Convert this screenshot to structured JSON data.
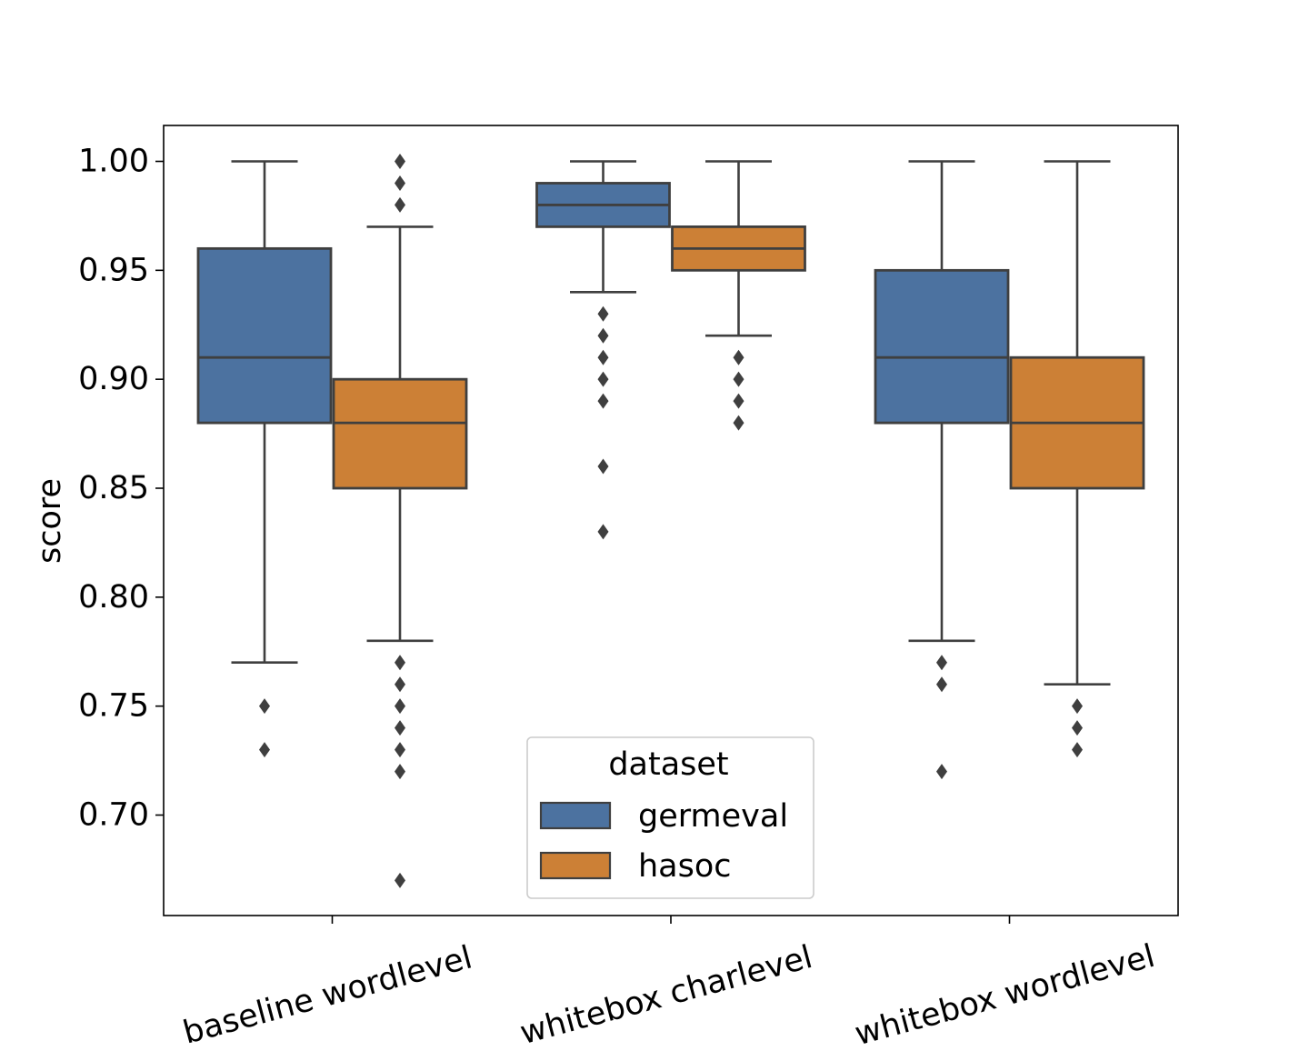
{
  "chart_data": {
    "type": "box",
    "ylabel": "score",
    "xlabel": "",
    "ylim": [
      0.655,
      1.018
    ],
    "yticks": [
      0.7,
      0.75,
      0.8,
      0.85,
      0.9,
      0.95,
      1.0
    ],
    "ytick_labels": [
      "0.70",
      "0.75",
      "0.80",
      "0.85",
      "0.90",
      "0.95",
      "1.00"
    ],
    "categories": [
      "baseline wordlevel",
      "whitebox charlevel",
      "whitebox wordlevel"
    ],
    "legend": {
      "title": "dataset",
      "placement": "lower-center"
    },
    "series": [
      {
        "name": "germeval",
        "color": "#4c72a0",
        "boxes": [
          {
            "whisker_low": 0.77,
            "q1": 0.88,
            "median": 0.91,
            "q3": 0.96,
            "whisker_high": 1.0,
            "outliers": [
              0.75,
              0.73
            ]
          },
          {
            "whisker_low": 0.94,
            "q1": 0.97,
            "median": 0.98,
            "q3": 0.99,
            "whisker_high": 1.0,
            "outliers": [
              0.93,
              0.92,
              0.91,
              0.9,
              0.89,
              0.86,
              0.83
            ]
          },
          {
            "whisker_low": 0.78,
            "q1": 0.88,
            "median": 0.91,
            "q3": 0.95,
            "whisker_high": 1.0,
            "outliers": [
              0.77,
              0.76,
              0.72
            ]
          }
        ]
      },
      {
        "name": "hasoc",
        "color": "#cc8036",
        "boxes": [
          {
            "whisker_low": 0.78,
            "q1": 0.85,
            "median": 0.88,
            "q3": 0.9,
            "whisker_high": 0.97,
            "outliers": [
              1.0,
              0.99,
              0.98,
              0.77,
              0.76,
              0.75,
              0.74,
              0.73,
              0.72,
              0.67
            ]
          },
          {
            "whisker_low": 0.92,
            "q1": 0.95,
            "median": 0.96,
            "q3": 0.97,
            "whisker_high": 1.0,
            "outliers": [
              0.91,
              0.9,
              0.89,
              0.88
            ]
          },
          {
            "whisker_low": 0.76,
            "q1": 0.85,
            "median": 0.88,
            "q3": 0.91,
            "whisker_high": 1.0,
            "outliers": [
              0.75,
              0.74,
              0.73
            ]
          }
        ]
      }
    ]
  }
}
